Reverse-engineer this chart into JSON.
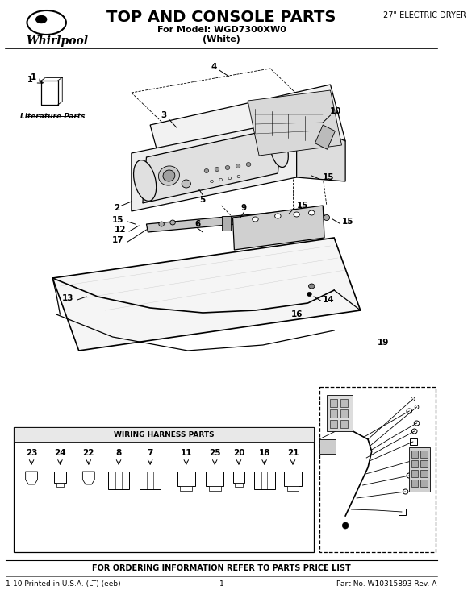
{
  "title": "TOP AND CONSOLE PARTS",
  "subtitle1": "For Model: WGD7300XW0",
  "subtitle2": "(White)",
  "right_header": "27\" ELECTRIC DRYER",
  "footer_center": "FOR ORDERING INFORMATION REFER TO PARTS PRICE LIST",
  "footer_left": "1-10 Printed in U.S.A. (LT) (eeb)",
  "footer_middle": "1",
  "footer_right": "Part No. W10315893 Rev. A",
  "literature_label": "Literature Parts",
  "wiring_harness_label": "WIRING HARNESS PARTS",
  "bg_color": "#ffffff",
  "figsize": [
    5.9,
    7.63
  ],
  "dpi": 100
}
